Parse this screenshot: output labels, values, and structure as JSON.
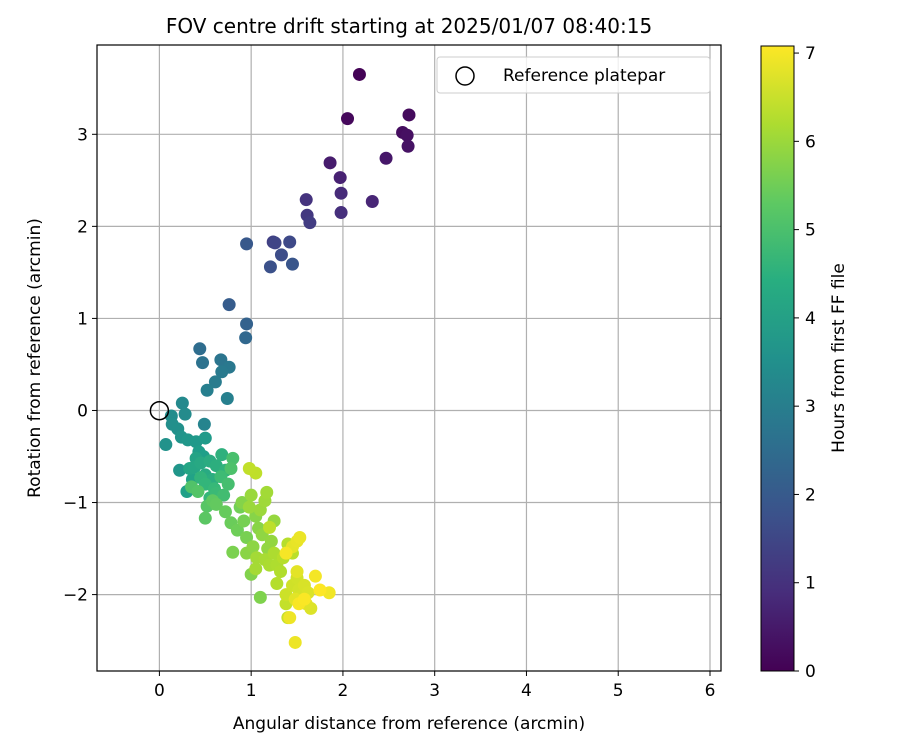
{
  "chart_data": {
    "type": "scatter",
    "title": "FOV centre drift starting at 2025/01/07 08:40:15",
    "xlabel": "Angular distance from reference (arcmin)",
    "ylabel": "Rotation from reference (arcmin)",
    "xlim": [
      -0.68,
      6.12
    ],
    "ylim": [
      -2.83,
      3.97
    ],
    "xticks": [
      0,
      1,
      2,
      3,
      4,
      5,
      6
    ],
    "xtick_labels": [
      "0",
      "1",
      "2",
      "3",
      "4",
      "5",
      "6"
    ],
    "yticks": [
      -2,
      -1,
      0,
      1,
      2,
      3
    ],
    "ytick_labels": [
      "−2",
      "−1",
      "0",
      "1",
      "2",
      "3"
    ],
    "grid": true,
    "legend": {
      "position": "top-right",
      "entries": [
        "Reference platepar"
      ]
    },
    "reference_point": {
      "x": 0,
      "y": 0,
      "label": "Reference platepar"
    },
    "colorbar": {
      "label": "Hours from first FF file",
      "range": [
        0,
        7.08
      ],
      "ticks": [
        0,
        1,
        2,
        3,
        4,
        5,
        6,
        7
      ],
      "tick_labels": [
        "0",
        "1",
        "2",
        "3",
        "4",
        "5",
        "6",
        "7"
      ],
      "colormap": "viridis"
    },
    "colors": {
      "axes": "#000000",
      "grid": "#b0b0b0"
    },
    "points": [
      [
        2.18,
        3.65,
        0.05
      ],
      [
        2.05,
        3.17,
        0.15
      ],
      [
        2.72,
        3.21,
        0.2
      ],
      [
        2.65,
        3.02,
        0.25
      ],
      [
        2.7,
        2.99,
        0.3
      ],
      [
        2.71,
        2.87,
        0.35
      ],
      [
        2.47,
        2.74,
        0.45
      ],
      [
        1.86,
        2.69,
        0.55
      ],
      [
        1.97,
        2.53,
        0.65
      ],
      [
        2.32,
        2.27,
        0.75
      ],
      [
        1.98,
        2.36,
        0.85
      ],
      [
        1.98,
        2.15,
        0.95
      ],
      [
        1.6,
        2.29,
        1.05
      ],
      [
        1.61,
        2.12,
        1.15
      ],
      [
        1.64,
        2.04,
        1.25
      ],
      [
        1.24,
        1.83,
        1.35
      ],
      [
        1.26,
        1.82,
        1.45
      ],
      [
        1.42,
        1.83,
        1.55
      ],
      [
        1.33,
        1.69,
        1.65
      ],
      [
        1.21,
        1.56,
        1.75
      ],
      [
        1.45,
        1.59,
        1.85
      ],
      [
        0.95,
        1.81,
        1.95
      ],
      [
        0.76,
        1.15,
        2.05
      ],
      [
        0.95,
        0.94,
        2.2
      ],
      [
        0.94,
        0.79,
        2.35
      ],
      [
        0.44,
        0.67,
        2.5
      ],
      [
        0.47,
        0.52,
        2.65
      ],
      [
        0.67,
        0.55,
        2.75
      ],
      [
        0.76,
        0.47,
        2.85
      ],
      [
        0.68,
        0.42,
        2.9
      ],
      [
        0.61,
        0.31,
        2.95
      ],
      [
        0.52,
        0.22,
        3.05
      ],
      [
        0.74,
        0.13,
        3.1
      ],
      [
        0.49,
        -0.15,
        3.2
      ],
      [
        0.25,
        0.08,
        3.35
      ],
      [
        0.28,
        -0.04,
        3.4
      ],
      [
        0.13,
        -0.06,
        3.45
      ],
      [
        0.14,
        -0.15,
        3.5
      ],
      [
        0.2,
        -0.2,
        3.55
      ],
      [
        0.07,
        -0.37,
        3.6
      ],
      [
        0.24,
        -0.29,
        3.65
      ],
      [
        0.22,
        -0.65,
        3.7
      ],
      [
        0.31,
        -0.32,
        3.75
      ],
      [
        0.4,
        -0.34,
        3.8
      ],
      [
        0.5,
        -0.3,
        3.85
      ],
      [
        0.43,
        -0.45,
        3.9
      ],
      [
        0.48,
        -0.5,
        3.95
      ],
      [
        0.3,
        -0.88,
        4.0
      ],
      [
        0.36,
        -0.75,
        4.05
      ],
      [
        0.4,
        -0.52,
        4.1
      ],
      [
        0.33,
        -0.63,
        4.15
      ],
      [
        0.38,
        -0.62,
        4.2
      ],
      [
        0.45,
        -0.57,
        4.25
      ],
      [
        0.5,
        -0.7,
        4.3
      ],
      [
        0.55,
        -0.55,
        4.35
      ],
      [
        0.58,
        -0.75,
        4.4
      ],
      [
        0.62,
        -0.6,
        4.45
      ],
      [
        0.68,
        -0.48,
        4.5
      ],
      [
        0.72,
        -0.65,
        4.55
      ],
      [
        0.45,
        -0.73,
        4.6
      ],
      [
        0.5,
        -0.8,
        4.65
      ],
      [
        0.55,
        -0.95,
        4.7
      ],
      [
        0.6,
        -0.85,
        4.75
      ],
      [
        0.62,
        -0.9,
        4.8
      ],
      [
        0.67,
        -0.72,
        4.85
      ],
      [
        0.7,
        -0.92,
        4.9
      ],
      [
        0.75,
        -0.8,
        4.95
      ],
      [
        0.8,
        -0.52,
        5.0
      ],
      [
        0.78,
        -0.63,
        5.05
      ],
      [
        0.35,
        -0.83,
        5.1
      ],
      [
        0.42,
        -0.88,
        5.15
      ],
      [
        0.52,
        -1.04,
        5.2
      ],
      [
        0.5,
        -1.17,
        5.25
      ],
      [
        0.58,
        -0.98,
        5.3
      ],
      [
        0.62,
        -1.02,
        5.35
      ],
      [
        0.72,
        -1.1,
        5.4
      ],
      [
        0.78,
        -1.22,
        5.45
      ],
      [
        0.85,
        -1.3,
        5.5
      ],
      [
        0.88,
        -1.05,
        5.55
      ],
      [
        0.92,
        -1.2,
        5.6
      ],
      [
        0.95,
        -1.38,
        5.62
      ],
      [
        0.8,
        -1.54,
        5.65
      ],
      [
        1.1,
        -2.03,
        5.7
      ],
      [
        1.0,
        -1.78,
        5.72
      ],
      [
        0.9,
        -1.0,
        5.75
      ],
      [
        1.05,
        -1.15,
        5.78
      ],
      [
        1.08,
        -1.28,
        5.8
      ],
      [
        0.95,
        -1.55,
        5.82
      ],
      [
        1.02,
        -1.48,
        5.85
      ],
      [
        1.12,
        -1.35,
        5.88
      ],
      [
        1.18,
        -1.5,
        5.9
      ],
      [
        1.22,
        -1.42,
        5.92
      ],
      [
        1.25,
        -1.2,
        5.95
      ],
      [
        1.0,
        -0.92,
        5.98
      ],
      [
        0.98,
        -1.05,
        6.0
      ],
      [
        1.1,
        -1.08,
        6.02
      ],
      [
        1.15,
        -0.98,
        6.05
      ],
      [
        1.17,
        -0.89,
        6.08
      ],
      [
        1.06,
        -1.6,
        6.1
      ],
      [
        1.05,
        -1.72,
        6.12
      ],
      [
        1.15,
        -1.62,
        6.15
      ],
      [
        1.2,
        -1.68,
        6.18
      ],
      [
        1.25,
        -1.55,
        6.2
      ],
      [
        1.28,
        -1.68,
        6.22
      ],
      [
        1.32,
        -1.75,
        6.25
      ],
      [
        1.28,
        -1.88,
        6.28
      ],
      [
        1.35,
        -1.6,
        6.3
      ],
      [
        1.4,
        -1.45,
        6.32
      ],
      [
        1.45,
        -1.55,
        6.35
      ],
      [
        1.2,
        -1.27,
        6.38
      ],
      [
        1.05,
        -0.68,
        6.4
      ],
      [
        0.98,
        -0.63,
        6.42
      ],
      [
        1.38,
        -2.1,
        6.45
      ],
      [
        1.4,
        -2.25,
        6.5
      ],
      [
        1.38,
        -2.0,
        6.55
      ],
      [
        1.45,
        -1.9,
        6.58
      ],
      [
        1.5,
        -1.82,
        6.6
      ],
      [
        1.52,
        -1.95,
        6.62
      ],
      [
        1.55,
        -2.02,
        6.65
      ],
      [
        1.58,
        -1.9,
        6.68
      ],
      [
        1.62,
        -1.98,
        6.7
      ],
      [
        1.65,
        -2.15,
        6.72
      ],
      [
        1.6,
        -2.1,
        6.75
      ],
      [
        1.48,
        -2.05,
        6.78
      ],
      [
        1.5,
        -1.75,
        6.8
      ],
      [
        1.45,
        -1.48,
        6.82
      ],
      [
        1.5,
        -1.42,
        6.85
      ],
      [
        1.53,
        -1.38,
        6.88
      ],
      [
        1.48,
        -2.52,
        6.9
      ],
      [
        1.42,
        -2.25,
        6.92
      ],
      [
        1.85,
        -1.98,
        6.95
      ],
      [
        1.7,
        -1.8,
        6.98
      ],
      [
        1.38,
        -1.55,
        7.0
      ],
      [
        1.52,
        -2.1,
        7.02
      ],
      [
        1.58,
        -2.05,
        7.05
      ],
      [
        1.75,
        -1.95,
        7.08
      ]
    ]
  }
}
